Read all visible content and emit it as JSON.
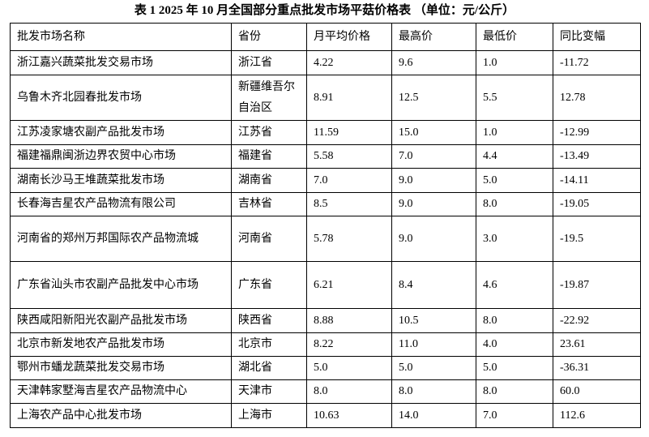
{
  "title": "表 1 2025 年 10 月全国部分重点批发市场平菇价格表 （单位：元/公斤）",
  "table": {
    "header": [
      "批发市场名称",
      "省份",
      "月平均价格",
      "最高价",
      "最低价",
      "同比变幅"
    ],
    "rows": [
      [
        "浙江嘉兴蔬菜批发交易市场",
        "浙江省",
        "4.22",
        "9.6",
        "1.0",
        "-11.72"
      ],
      [
        "乌鲁木齐北园春批发市场",
        "新疆维吾尔自治区",
        "8.91",
        "12.5",
        "5.5",
        "12.78"
      ],
      [
        "江苏凌家塘农副产品批发市场",
        "江苏省",
        "11.59",
        "15.0",
        "1.0",
        "-12.99"
      ],
      [
        "福建福鼎闽浙边界农贸中心市场",
        "福建省",
        "5.58",
        "7.0",
        "4.4",
        "-13.49"
      ],
      [
        "湖南长沙马王堆蔬菜批发市场",
        "湖南省",
        "7.0",
        "9.0",
        "5.0",
        "-14.11"
      ],
      [
        "长春海吉星农产品物流有限公司",
        "吉林省",
        "8.5",
        "9.0",
        "8.0",
        "-19.05"
      ],
      [
        "河南省的郑州万邦国际农产品物流城",
        "河南省",
        "5.78",
        "9.0",
        "3.0",
        "-19.5"
      ],
      [
        "广东省汕头市农副产品批发中心市场",
        "广东省",
        "6.21",
        "8.4",
        "4.6",
        "-19.87"
      ],
      [
        "陕西咸阳新阳光农副产品批发市场",
        "陕西省",
        "8.88",
        "10.5",
        "8.0",
        "-22.92"
      ],
      [
        "北京市新发地农产品批发市场",
        "北京市",
        "8.22",
        "11.0",
        "4.0",
        "23.61"
      ],
      [
        "鄂州市蟠龙蔬菜批发交易市场",
        "湖北省",
        "5.0",
        "5.0",
        "5.0",
        "-36.31"
      ],
      [
        "天津韩家墅海吉星农产品物流中心",
        "天津市",
        "8.0",
        "8.0",
        "8.0",
        "60.0"
      ],
      [
        "上海农产品中心批发市场",
        "上海市",
        "10.63",
        "14.0",
        "7.0",
        "112.6"
      ]
    ]
  }
}
